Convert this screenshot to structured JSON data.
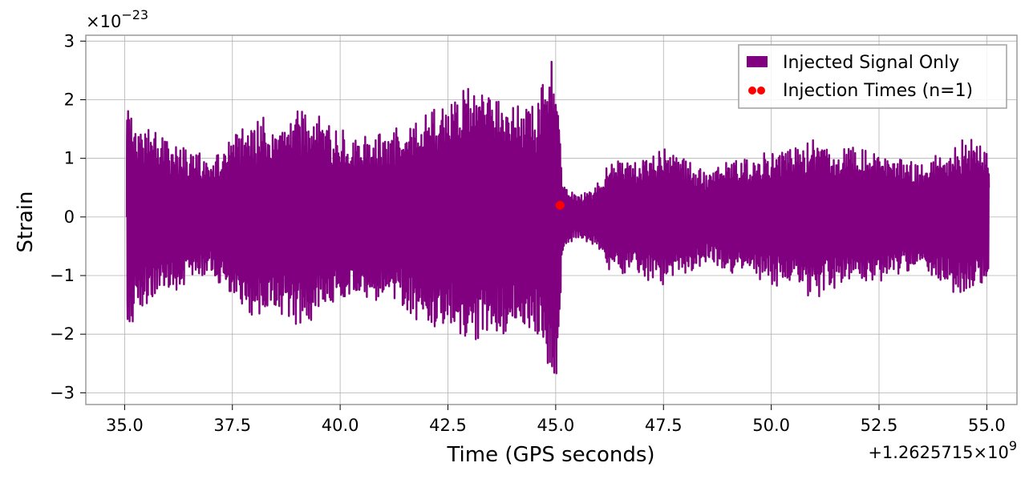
{
  "chart_data": {
    "type": "line",
    "xlabel": "Time (GPS seconds)",
    "ylabel": "Strain",
    "x_offset_label": "+1.2625715",
    "x_offset_exp_base": "×10",
    "x_offset_exp": "9",
    "y_scale_base": "×10",
    "y_scale_exp": "−23",
    "xlim": [
      34.1,
      55.7
    ],
    "ylim": [
      -3.2,
      3.1
    ],
    "x_ticks": [
      {
        "value": 35.0,
        "label": "35.0"
      },
      {
        "value": 37.5,
        "label": "37.5"
      },
      {
        "value": 40.0,
        "label": "40.0"
      },
      {
        "value": 42.5,
        "label": "42.5"
      },
      {
        "value": 45.0,
        "label": "45.0"
      },
      {
        "value": 47.5,
        "label": "47.5"
      },
      {
        "value": 50.0,
        "label": "50.0"
      },
      {
        "value": 52.5,
        "label": "52.5"
      },
      {
        "value": 55.0,
        "label": "55.0"
      }
    ],
    "y_ticks": [
      {
        "value": 3,
        "label": "3"
      },
      {
        "value": 2,
        "label": "2"
      },
      {
        "value": 1,
        "label": "1"
      },
      {
        "value": 0,
        "label": "0"
      },
      {
        "value": -1,
        "label": "−1"
      },
      {
        "value": -2,
        "label": "−2"
      },
      {
        "value": -3,
        "label": "−3"
      }
    ],
    "grid": true,
    "legend_position": "top-right",
    "series": [
      {
        "name": "Injected Signal Only",
        "kind": "oscillating-strain",
        "color": "#800080",
        "x_range": [
          35.05,
          55.05
        ],
        "envelope": [
          [
            35.05,
            2.2
          ],
          [
            35.3,
            1.5
          ],
          [
            35.6,
            1.6
          ],
          [
            36.0,
            1.3
          ],
          [
            36.5,
            1.2
          ],
          [
            37.0,
            1.0
          ],
          [
            37.5,
            1.4
          ],
          [
            38.0,
            1.8
          ],
          [
            38.5,
            1.6
          ],
          [
            39.0,
            1.9
          ],
          [
            39.5,
            1.8
          ],
          [
            40.0,
            1.5
          ],
          [
            40.5,
            1.4
          ],
          [
            41.0,
            1.5
          ],
          [
            41.5,
            1.6
          ],
          [
            42.0,
            1.9
          ],
          [
            42.5,
            2.1
          ],
          [
            43.0,
            2.2
          ],
          [
            43.5,
            2.1
          ],
          [
            44.0,
            2.0
          ],
          [
            44.5,
            1.9
          ],
          [
            44.8,
            2.6
          ],
          [
            45.05,
            2.8
          ],
          [
            45.15,
            0.6
          ],
          [
            45.5,
            0.35
          ],
          [
            45.9,
            0.5
          ],
          [
            46.3,
            1.0
          ],
          [
            46.8,
            1.0
          ],
          [
            47.5,
            1.2
          ],
          [
            48.0,
            1.0
          ],
          [
            48.5,
            0.8
          ],
          [
            49.0,
            1.0
          ],
          [
            49.5,
            1.0
          ],
          [
            50.0,
            1.2
          ],
          [
            50.5,
            1.2
          ],
          [
            51.0,
            1.4
          ],
          [
            51.5,
            1.2
          ],
          [
            52.0,
            1.2
          ],
          [
            52.5,
            1.1
          ],
          [
            53.0,
            1.0
          ],
          [
            53.5,
            0.9
          ],
          [
            54.0,
            1.2
          ],
          [
            54.5,
            1.4
          ],
          [
            55.05,
            1.1
          ]
        ]
      },
      {
        "name": "Injection Times (n=1)",
        "kind": "scatter",
        "color": "#ff0000",
        "points": [
          {
            "x": 45.1,
            "y": 0.2
          }
        ]
      }
    ]
  }
}
